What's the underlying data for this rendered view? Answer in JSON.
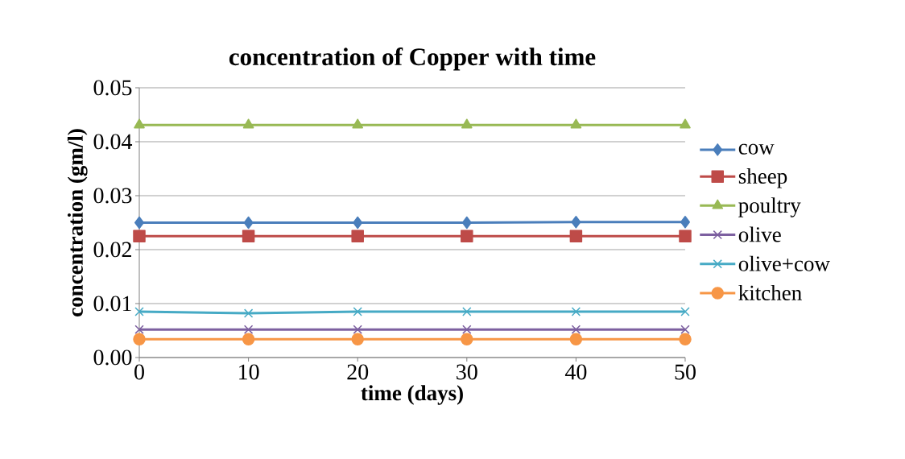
{
  "chart_data": {
    "type": "line",
    "title": "concentration of Copper with time",
    "xlabel": "time (days)",
    "ylabel": "concentration (gm/l)",
    "x": [
      0,
      10,
      20,
      30,
      40,
      50
    ],
    "xlim": [
      0,
      50
    ],
    "xticks": [
      0,
      10,
      20,
      30,
      40,
      50
    ],
    "ylim": [
      0,
      0.05
    ],
    "yticks": [
      {
        "value": 0,
        "label": "0.00"
      },
      0.01,
      0.02,
      0.03,
      0.04,
      0.05
    ],
    "grid": "y",
    "legend": "right",
    "line_style": "solid",
    "series": [
      {
        "name": "cow",
        "color": "#4a7ebb",
        "marker": "diamond",
        "values": [
          0.025,
          0.025,
          0.025,
          0.025,
          0.0251,
          0.0251
        ]
      },
      {
        "name": "sheep",
        "color": "#be4b48",
        "marker": "square",
        "values": [
          0.0225,
          0.0225,
          0.0225,
          0.0225,
          0.0225,
          0.0225
        ]
      },
      {
        "name": "poultry",
        "color": "#98b954",
        "marker": "triangle",
        "values": [
          0.0431,
          0.0431,
          0.0431,
          0.0431,
          0.0431,
          0.0431
        ]
      },
      {
        "name": "olive",
        "color": "#7d60a0",
        "marker": "cross",
        "values": [
          0.0052,
          0.0052,
          0.0052,
          0.0052,
          0.0052,
          0.0052
        ]
      },
      {
        "name": "olive+cow",
        "color": "#46aac5",
        "marker": "cross",
        "values": [
          0.0085,
          0.0082,
          0.0085,
          0.0085,
          0.0085,
          0.0085
        ]
      },
      {
        "name": "kitchen",
        "color": "#f79646",
        "marker": "circle",
        "values": [
          0.0034,
          0.0034,
          0.0034,
          0.0034,
          0.0034,
          0.0034
        ]
      }
    ]
  }
}
